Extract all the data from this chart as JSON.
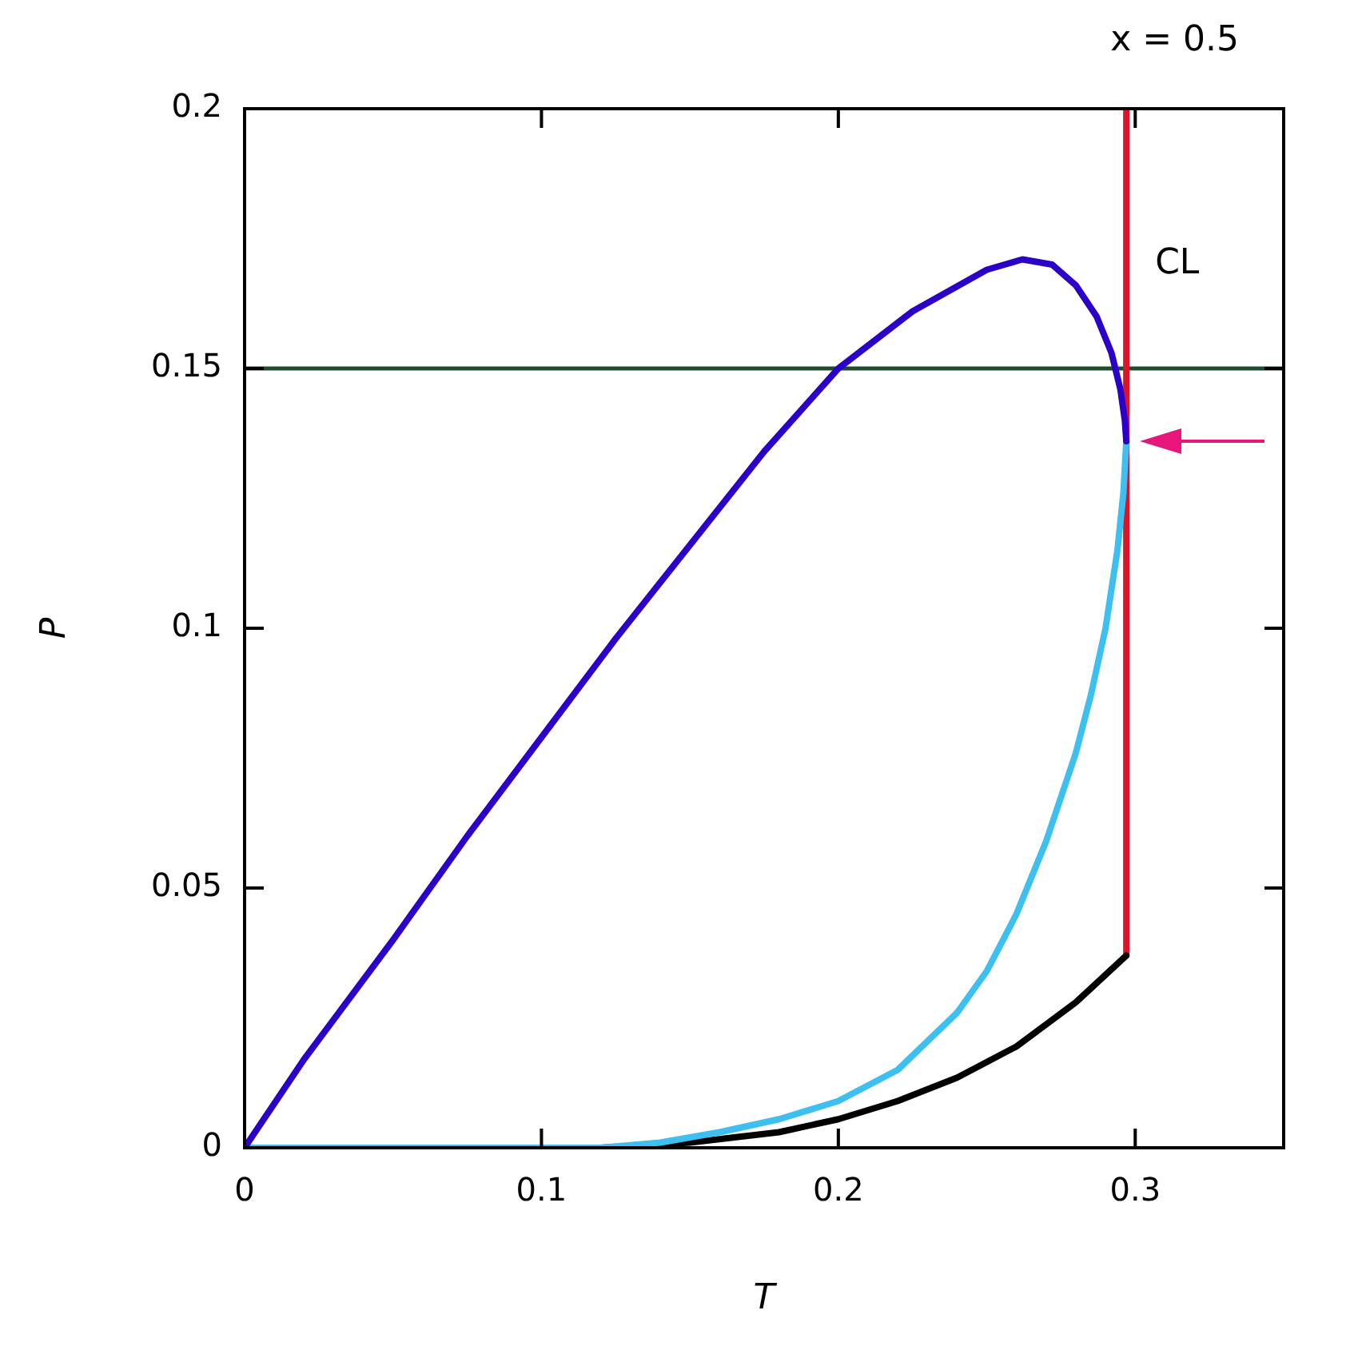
{
  "chart_data": {
    "type": "line",
    "title": "x = 0.5",
    "xlabel": "T",
    "ylabel": "P",
    "xlim": [
      0,
      0.35
    ],
    "xticks": [
      0,
      0.1,
      0.2,
      0.3
    ],
    "ylim": [
      0,
      0.2
    ],
    "yticks": [
      0,
      0.05,
      0.1,
      0.15,
      0.2
    ],
    "grid": false,
    "legend": false,
    "marker": "none",
    "line_style": "solid",
    "series": [
      {
        "color": "#2b00c8",
        "x": [
          0,
          0.02,
          0.05,
          0.075,
          0.1,
          0.125,
          0.15,
          0.175,
          0.2,
          0.225,
          0.25,
          0.262,
          0.272,
          0.28,
          0.287,
          0.292,
          0.295,
          0.2965,
          0.297
        ],
        "values": [
          0,
          0.017,
          0.04,
          0.06,
          0.079,
          0.098,
          0.116,
          0.134,
          0.15,
          0.161,
          0.169,
          0.171,
          0.17,
          0.166,
          0.16,
          0.153,
          0.146,
          0.14,
          0.136
        ]
      },
      {
        "color": "#3dbff0",
        "x": [
          0,
          0.12,
          0.14,
          0.16,
          0.18,
          0.2,
          0.22,
          0.24,
          0.25,
          0.26,
          0.27,
          0.28,
          0.285,
          0.29,
          0.294,
          0.296,
          0.297
        ],
        "values": [
          0,
          0,
          0.001,
          0.003,
          0.0055,
          0.009,
          0.015,
          0.026,
          0.034,
          0.045,
          0.059,
          0.076,
          0.087,
          0.1,
          0.115,
          0.126,
          0.136
        ]
      },
      {
        "color": "#000000",
        "x": [
          0.12,
          0.15,
          0.18,
          0.2,
          0.22,
          0.24,
          0.26,
          0.28,
          0.297
        ],
        "values": [
          0,
          0.001,
          0.003,
          0.0055,
          0.009,
          0.0135,
          0.0195,
          0.028,
          0.037
        ]
      },
      {
        "color": "#dc1428",
        "x": [
          0.297,
          0.297
        ],
        "values": [
          0.037,
          0.2
        ]
      }
    ],
    "ref_lines": [
      {
        "axis": "y",
        "value": 0.15,
        "color": "#1e4d2b"
      }
    ],
    "annotations": [
      {
        "text": "CL",
        "x": 0.297,
        "y": 0.17
      }
    ]
  }
}
